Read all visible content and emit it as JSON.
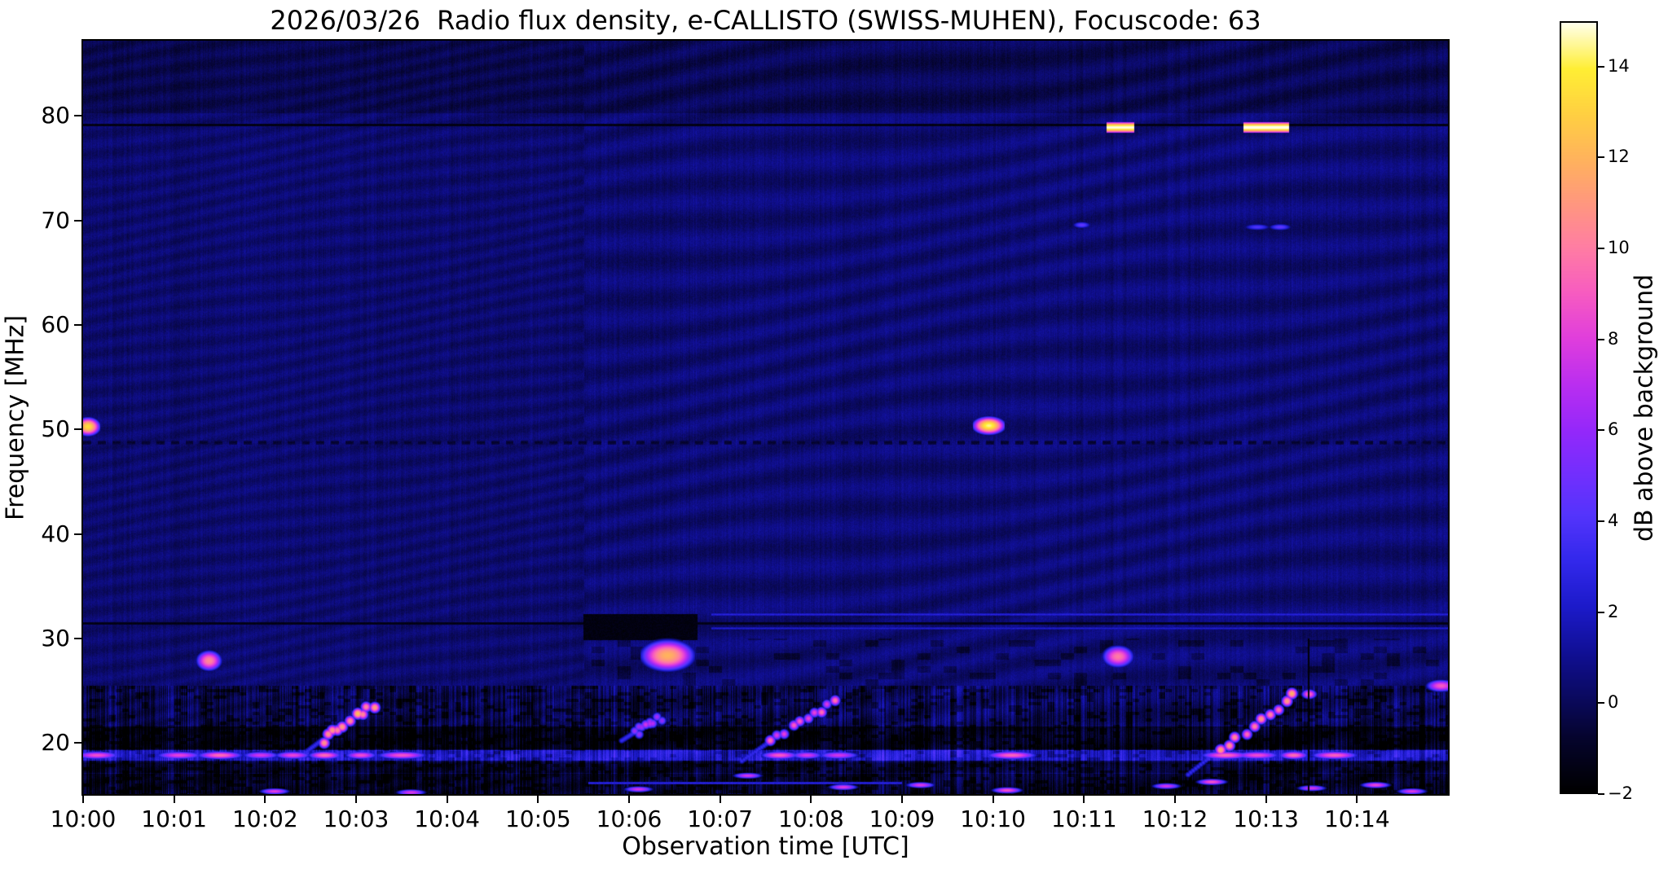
{
  "figure": {
    "title": "2026/03/26  Radio flux density, e-CALLISTO (SWISS-MUHEN), Focuscode: 63"
  },
  "chart_data": {
    "type": "heatmap",
    "title": "2026/03/26  Radio flux density, e-CALLISTO (SWISS-MUHEN), Focuscode: 63",
    "xlabel": "Observation time [UTC]",
    "ylabel": "Frequency [MHz]",
    "colorbar_label": "dB above background",
    "instrument": "e-CALLISTO (SWISS-MUHEN)",
    "date": "2026/03/26",
    "focuscode": "63",
    "time_range_utc": [
      "10:00",
      "10:15"
    ],
    "x_ticks": [
      {
        "minute": 0,
        "label": "10:00"
      },
      {
        "minute": 1,
        "label": "10:01"
      },
      {
        "minute": 2,
        "label": "10:02"
      },
      {
        "minute": 3,
        "label": "10:03"
      },
      {
        "minute": 4,
        "label": "10:04"
      },
      {
        "minute": 5,
        "label": "10:05"
      },
      {
        "minute": 6,
        "label": "10:06"
      },
      {
        "minute": 7,
        "label": "10:07"
      },
      {
        "minute": 8,
        "label": "10:08"
      },
      {
        "minute": 9,
        "label": "10:09"
      },
      {
        "minute": 10,
        "label": "10:10"
      },
      {
        "minute": 11,
        "label": "10:11"
      },
      {
        "minute": 12,
        "label": "10:12"
      },
      {
        "minute": 13,
        "label": "10:13"
      },
      {
        "minute": 14,
        "label": "10:14"
      }
    ],
    "y_ticks": [
      80,
      70,
      60,
      50,
      40,
      30,
      20
    ],
    "freq_range_mhz": [
      15.1,
      87.2
    ],
    "value_range_db": [
      -2,
      15
    ],
    "colorbar_ticks": [
      {
        "value": 14,
        "label": "14"
      },
      {
        "value": 12,
        "label": "12"
      },
      {
        "value": 10,
        "label": "10"
      },
      {
        "value": 8,
        "label": "8"
      },
      {
        "value": 6,
        "label": "6"
      },
      {
        "value": 4,
        "label": "4"
      },
      {
        "value": 2,
        "label": "2"
      },
      {
        "value": 0,
        "label": "0"
      },
      {
        "value": -2,
        "label": "−2"
      }
    ],
    "colormap_stops": [
      [
        0.0,
        0,
        0,
        0
      ],
      [
        0.07,
        5,
        4,
        45
      ],
      [
        0.12,
        10,
        9,
        92
      ],
      [
        0.18,
        16,
        15,
        148
      ],
      [
        0.24,
        28,
        26,
        201
      ],
      [
        0.3,
        50,
        40,
        235
      ],
      [
        0.36,
        84,
        52,
        252
      ],
      [
        0.42,
        118,
        46,
        253
      ],
      [
        0.47,
        148,
        40,
        250
      ],
      [
        0.53,
        186,
        46,
        240
      ],
      [
        0.59,
        224,
        62,
        220
      ],
      [
        0.65,
        247,
        92,
        192
      ],
      [
        0.71,
        255,
        126,
        162
      ],
      [
        0.77,
        255,
        153,
        124
      ],
      [
        0.82,
        255,
        177,
        94
      ],
      [
        0.88,
        255,
        207,
        66
      ],
      [
        0.94,
        255,
        238,
        52
      ],
      [
        1.0,
        255,
        255,
        235
      ]
    ],
    "background": {
      "base_db": 0.45,
      "seam_minute": 5.5,
      "top_dark_above_mhz": 80.3,
      "low_freq_below_mhz": 25.5,
      "bands": [
        {
          "f0": 18.3,
          "f1": 19.35,
          "add_db": 2.4
        },
        {
          "f0": 19.45,
          "f1": 21.6,
          "add_db": -1.35
        },
        {
          "f0": 17.2,
          "f1": 18.2,
          "add_db": -0.85
        },
        {
          "f0": 15.1,
          "f1": 17.1,
          "add_db": -0.95
        }
      ]
    },
    "features": {
      "dark_rfi_lines": [
        {
          "freq": 79.2,
          "t0": 0,
          "t1": 15,
          "value": -1.8
        },
        {
          "freq": 31.5,
          "t0": 0,
          "t1": 15,
          "value": -1.7
        }
      ],
      "dashed_dark_band": {
        "freq": 48.8,
        "value": -1.1,
        "period_min": 0.16,
        "duty": 0.55
      },
      "dark_patch": {
        "t0": 5.5,
        "t1": 6.75,
        "f0": 29.8,
        "f1": 32.3,
        "value": -1.85
      },
      "bright_blue_lines": [
        {
          "freq": 32.3,
          "t0": 6.9,
          "t1": 15,
          "value": 2.6
        },
        {
          "freq": 31.0,
          "t0": 6.9,
          "t1": 15,
          "value": 2.2
        },
        {
          "freq": 16.2,
          "t0": 5.55,
          "t1": 9.0,
          "value": 2.8
        }
      ],
      "bright_79mhz_segments": [
        {
          "t0": 11.25,
          "t1": 11.55,
          "freq": 78.9,
          "peak_db": 14.6
        },
        {
          "t0": 12.75,
          "t1": 13.25,
          "freq": 78.9,
          "peak_db": 14.8
        }
      ],
      "point_sources": [
        {
          "t": 0.05,
          "freq": 50.3,
          "peak_db": 13.5,
          "w_min": 0.07,
          "h_mhz": 0.9
        },
        {
          "t": 9.95,
          "freq": 50.4,
          "peak_db": 14.5,
          "w_min": 0.09,
          "h_mhz": 0.85
        },
        {
          "t": 1.38,
          "freq": 27.9,
          "peak_db": 10.5,
          "w_min": 0.08,
          "h_mhz": 1.1
        },
        {
          "t": 6.42,
          "freq": 28.4,
          "peak_db": 12.0,
          "w_min": 0.16,
          "h_mhz": 1.6
        },
        {
          "t": 11.37,
          "freq": 28.3,
          "peak_db": 10.0,
          "w_min": 0.1,
          "h_mhz": 1.2
        },
        {
          "t": 14.92,
          "freq": 25.5,
          "peak_db": 9.0,
          "w_min": 0.1,
          "h_mhz": 0.7
        },
        {
          "t": 13.47,
          "freq": 24.7,
          "peak_db": 9.5,
          "w_min": 0.05,
          "h_mhz": 0.55
        },
        {
          "t": 10.97,
          "freq": 69.6,
          "peak_db": 4.5,
          "w_min": 0.08,
          "h_mhz": 0.5
        },
        {
          "t": 12.9,
          "freq": 69.4,
          "peak_db": 4.0,
          "w_min": 0.12,
          "h_mhz": 0.5
        },
        {
          "t": 13.15,
          "freq": 69.4,
          "peak_db": 4.5,
          "w_min": 0.1,
          "h_mhz": 0.5
        }
      ],
      "drifting_bursts": [
        {
          "t0": 2.62,
          "t1": 3.18,
          "f0": 20.3,
          "f1": 23.6,
          "peak_db": 12.5
        },
        {
          "t0": 6.05,
          "t1": 6.35,
          "f0": 21.0,
          "f1": 22.5,
          "peak_db": 8.5
        },
        {
          "t0": 7.55,
          "t1": 8.25,
          "f0": 20.2,
          "f1": 24.0,
          "peak_db": 10.0
        },
        {
          "t0": 12.5,
          "t1": 13.3,
          "f0": 19.5,
          "f1": 24.5,
          "peak_db": 12.0
        }
      ],
      "band_blob_minutes_18p85": [
        0.15,
        1.05,
        1.5,
        1.95,
        2.3,
        2.65,
        3.05,
        3.5,
        7.65,
        7.95,
        8.3,
        10.2,
        12.55,
        12.9,
        13.3,
        13.75
      ],
      "bottom_dashes": [
        {
          "t": 2.1,
          "f": 15.4
        },
        {
          "t": 3.6,
          "f": 15.3
        },
        {
          "t": 6.1,
          "f": 15.6
        },
        {
          "t": 7.3,
          "f": 16.9
        },
        {
          "t": 8.35,
          "f": 15.8
        },
        {
          "t": 9.2,
          "f": 16.0
        },
        {
          "t": 10.15,
          "f": 15.5
        },
        {
          "t": 11.9,
          "f": 15.9
        },
        {
          "t": 12.4,
          "f": 16.3
        },
        {
          "t": 13.5,
          "f": 15.7
        },
        {
          "t": 14.2,
          "f": 16.0
        },
        {
          "t": 14.6,
          "f": 15.4
        }
      ],
      "black_vertical_line": {
        "t": 13.46,
        "f0": 15.1,
        "f1": 30,
        "value": -1.9
      }
    }
  }
}
